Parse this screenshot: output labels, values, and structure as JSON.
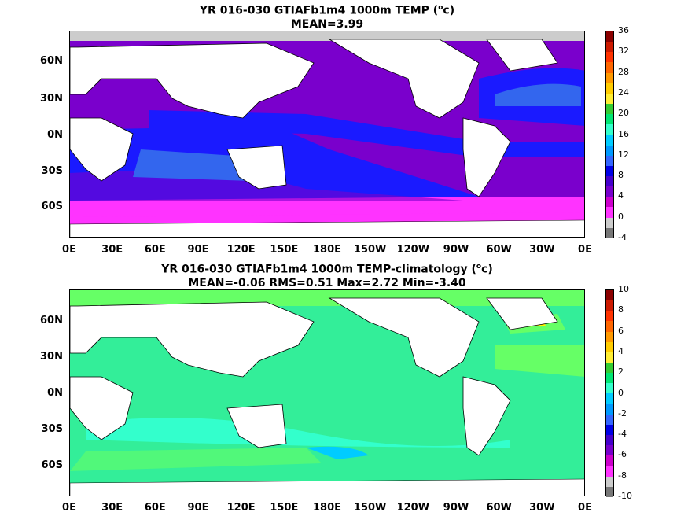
{
  "top": {
    "title_line1": "YR 016-030 GTIAFb1m4 1000m TEMP (",
    "title_unit_sup": "o",
    "title_unit_end": "c)",
    "title_line2": "MEAN=3.99",
    "colorbar_labels": [
      "36",
      "32",
      "28",
      "24",
      "20",
      "16",
      "12",
      "8",
      "4",
      "0",
      "-4"
    ],
    "colorbar_colors": [
      "#8b0000",
      "#cc1a00",
      "#ff3300",
      "#ff6600",
      "#ff9900",
      "#ffcc00",
      "#ffee33",
      "#33cc33",
      "#00e673",
      "#33ffcc",
      "#00ccff",
      "#0099ff",
      "#3366ff",
      "#0000e6",
      "#4400cc",
      "#7700cc",
      "#cc00cc",
      "#ff33ff",
      "#cccccc",
      "#777777"
    ]
  },
  "bottom": {
    "title_line1": "YR 016-030 GTIAFb1m4 1000m TEMP-climatology (",
    "title_unit_sup": "o",
    "title_unit_end": "c)",
    "title_line2": "MEAN=-0.06   RMS=0.51   Max=2.72   Min=-3.40",
    "colorbar_labels": [
      "10",
      "8",
      "6",
      "4",
      "2",
      "0",
      "-2",
      "-4",
      "-6",
      "-8",
      "-10"
    ],
    "colorbar_colors": [
      "#8b0000",
      "#cc1a00",
      "#ff3300",
      "#ff6600",
      "#ff9900",
      "#ffcc00",
      "#ffee33",
      "#33cc33",
      "#00e673",
      "#33ffcc",
      "#00ccff",
      "#0099ff",
      "#3366ff",
      "#0000e6",
      "#4400cc",
      "#7700cc",
      "#cc00cc",
      "#ff33ff",
      "#cccccc",
      "#777777"
    ]
  },
  "lat_labels": [
    "60N",
    "30N",
    "0N",
    "30S",
    "60S"
  ],
  "lon_labels": [
    "0E",
    "30E",
    "60E",
    "90E",
    "120E",
    "150E",
    "180E",
    "150W",
    "120W",
    "90W",
    "60W",
    "30W",
    "0E"
  ],
  "colors": {
    "top_ocean": "#7a00cc",
    "top_blue": "#1a1aff",
    "top_lightblue": "#3366ee",
    "top_magenta": "#ff33ff",
    "top_gray": "#cccccc",
    "bottom_ocean": "#33ee99",
    "bottom_green": "#66ff66",
    "bottom_cyan": "#33ffcc",
    "bottom_yellow": "#ffee00"
  }
}
